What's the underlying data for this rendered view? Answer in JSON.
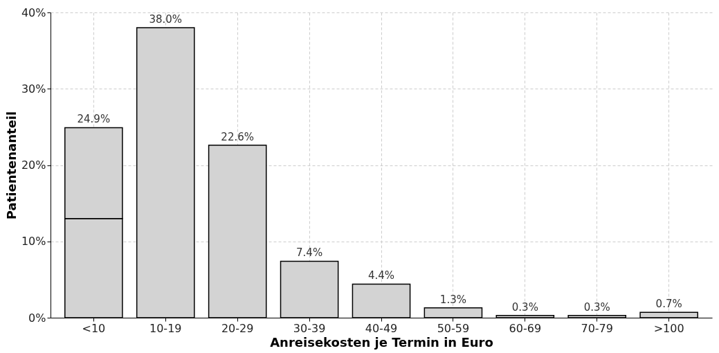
{
  "chart_data": {
    "type": "bar",
    "xlabel": "Anreisekosten je Termin in Euro",
    "ylabel": "Patientenanteil",
    "categories": [
      "<10",
      "10-19",
      "20-29",
      "30-39",
      "40-49",
      "50-59",
      "60-69",
      "70-79",
      ">100"
    ],
    "stacked": true,
    "series": [
      {
        "color": "#d3d3d3",
        "values": [
          13.0,
          null,
          null,
          null,
          null,
          null,
          null,
          null,
          null
        ]
      },
      {
        "color": "#d3d3d3",
        "values": [
          11.9,
          38.0,
          22.6,
          7.4,
          4.4,
          1.3,
          0.3,
          0.3,
          0.7
        ]
      }
    ],
    "totals": [
      "24.9%",
      "38.0%",
      "22.6%",
      "7.4%",
      "4.4%",
      "1.3%",
      "0.3%",
      "0.3%",
      "0.7%"
    ],
    "ylim": [
      0,
      40
    ],
    "yticks": [
      {
        "value": 0,
        "label": "0%"
      },
      {
        "value": 10,
        "label": "10%"
      },
      {
        "value": 20,
        "label": "20%"
      },
      {
        "value": 30,
        "label": "30%"
      },
      {
        "value": 40,
        "label": "40%"
      }
    ],
    "grid": true
  }
}
